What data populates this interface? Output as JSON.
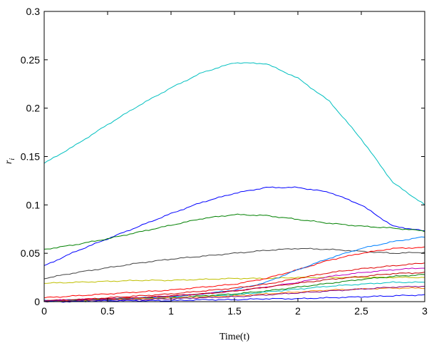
{
  "chart_data": {
    "type": "line",
    "title": "",
    "xlabel": "Time(t)",
    "ylabel": "r_i",
    "xlim": [
      0,
      3
    ],
    "ylim": [
      0,
      0.3
    ],
    "xticks": [
      "0",
      "0.5",
      "1",
      "1.5",
      "2",
      "2.5",
      "3"
    ],
    "yticks": [
      "0",
      "0.05",
      "0.1",
      "0.15",
      "0.2",
      "0.25",
      "0.3"
    ],
    "grid": false,
    "legend": "none",
    "x": [
      0,
      0.25,
      0.5,
      0.75,
      1.0,
      1.25,
      1.5,
      1.75,
      2.0,
      2.25,
      2.5,
      2.75,
      3.0
    ],
    "series": [
      {
        "color": "#00bfbf",
        "values": [
          0.143,
          0.162,
          0.183,
          0.203,
          0.221,
          0.237,
          0.247,
          0.246,
          0.231,
          0.207,
          0.168,
          0.123,
          0.1
        ]
      },
      {
        "color": "#0000ff",
        "values": [
          0.037,
          0.052,
          0.065,
          0.078,
          0.091,
          0.103,
          0.112,
          0.118,
          0.118,
          0.113,
          0.1,
          0.078,
          0.073
        ]
      },
      {
        "color": "#008000",
        "values": [
          0.054,
          0.059,
          0.065,
          0.072,
          0.079,
          0.086,
          0.09,
          0.089,
          0.085,
          0.081,
          0.078,
          0.076,
          0.073
        ]
      },
      {
        "color": "#404040",
        "values": [
          0.024,
          0.03,
          0.035,
          0.04,
          0.044,
          0.047,
          0.05,
          0.053,
          0.055,
          0.054,
          0.052,
          0.05,
          0.051
        ]
      },
      {
        "color": "#bfbf00",
        "values": [
          0.019,
          0.02,
          0.021,
          0.022,
          0.022,
          0.023,
          0.024,
          0.024,
          0.025,
          0.025,
          0.025,
          0.025,
          0.025
        ]
      },
      {
        "color": "#ff0000",
        "values": [
          0.004,
          0.006,
          0.008,
          0.01,
          0.012,
          0.015,
          0.018,
          0.024,
          0.033,
          0.043,
          0.05,
          0.055,
          0.056
        ]
      },
      {
        "color": "#0080ff",
        "values": [
          0.001,
          0.002,
          0.003,
          0.004,
          0.005,
          0.008,
          0.012,
          0.02,
          0.033,
          0.045,
          0.055,
          0.062,
          0.067
        ]
      },
      {
        "color": "#e00000",
        "values": [
          0.001,
          0.002,
          0.004,
          0.006,
          0.008,
          0.011,
          0.014,
          0.018,
          0.024,
          0.03,
          0.034,
          0.037,
          0.04
        ]
      },
      {
        "color": "#bf00bf",
        "values": [
          0.001,
          0.002,
          0.003,
          0.004,
          0.006,
          0.008,
          0.011,
          0.015,
          0.02,
          0.026,
          0.03,
          0.033,
          0.035
        ]
      },
      {
        "color": "#c00000",
        "values": [
          0.001,
          0.002,
          0.003,
          0.004,
          0.006,
          0.008,
          0.011,
          0.015,
          0.019,
          0.023,
          0.026,
          0.029,
          0.03
        ]
      },
      {
        "color": "#008000",
        "values": [
          0.0,
          0.001,
          0.002,
          0.003,
          0.004,
          0.006,
          0.008,
          0.011,
          0.015,
          0.019,
          0.023,
          0.026,
          0.028
        ]
      },
      {
        "color": "#00bfbf",
        "values": [
          0.0,
          0.001,
          0.002,
          0.003,
          0.004,
          0.005,
          0.007,
          0.01,
          0.013,
          0.016,
          0.018,
          0.02,
          0.02
        ]
      },
      {
        "color": "#ff8000",
        "values": [
          0.0,
          0.001,
          0.002,
          0.003,
          0.004,
          0.005,
          0.006,
          0.008,
          0.01,
          0.012,
          0.013,
          0.014,
          0.014
        ]
      },
      {
        "color": "#800080",
        "values": [
          0.001,
          0.001,
          0.002,
          0.002,
          0.003,
          0.004,
          0.005,
          0.007,
          0.009,
          0.011,
          0.013,
          0.015,
          0.016
        ]
      },
      {
        "color": "#0000ff",
        "values": [
          0.0,
          0.0,
          0.001,
          0.001,
          0.001,
          0.002,
          0.002,
          0.003,
          0.003,
          0.004,
          0.005,
          0.006,
          0.007
        ]
      }
    ]
  }
}
